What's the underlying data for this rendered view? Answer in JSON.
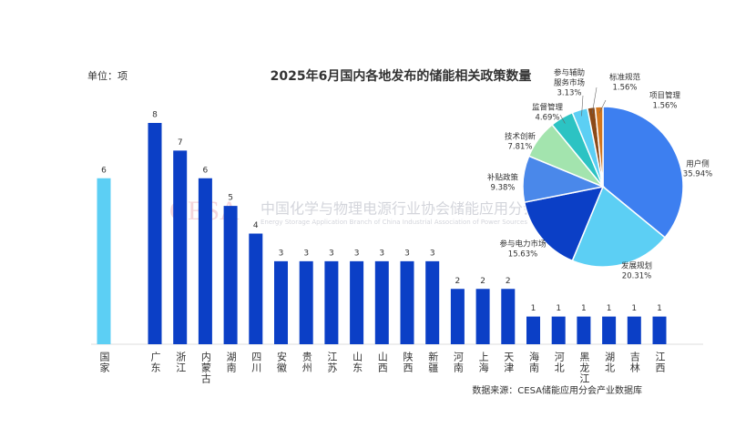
{
  "unit_label": "单位：项",
  "watermark": "中国化学与物理电源行业协会储能应用分会",
  "watermark_logo": "CESA",
  "watermark_en": "Energy Storage Application Branch of China Industrial Association of Power Sources",
  "source": "数据来源：CESA储能应用分会产业数据库",
  "chart_data": [
    {
      "type": "bar",
      "title": "2025年6月国内各地发布的储能相关政策数量",
      "categories": [
        "国家",
        "广东",
        "浙江",
        "内蒙古",
        "湖南",
        "四川",
        "安徽",
        "贵州",
        "江苏",
        "山东",
        "山西",
        "陕西",
        "新疆",
        "河南",
        "上海",
        "天津",
        "海南",
        "河北",
        "黑龙江",
        "湖北",
        "吉林",
        "江西"
      ],
      "values": [
        6,
        8,
        7,
        6,
        5,
        4,
        3,
        3,
        3,
        3,
        3,
        3,
        3,
        2,
        2,
        2,
        1,
        1,
        1,
        1,
        1,
        1
      ],
      "colors": [
        "#5ccff4",
        "#0b3fc6",
        "#0b3fc6",
        "#0b3fc6",
        "#0b3fc6",
        "#0b3fc6",
        "#0b3fc6",
        "#0b3fc6",
        "#0b3fc6",
        "#0b3fc6",
        "#0b3fc6",
        "#0b3fc6",
        "#0b3fc6",
        "#0b3fc6",
        "#0b3fc6",
        "#0b3fc6",
        "#0b3fc6",
        "#0b3fc6",
        "#0b3fc6",
        "#0b3fc6",
        "#0b3fc6",
        "#0b3fc6"
      ],
      "ylim": [
        0,
        8
      ]
    },
    {
      "type": "pie",
      "labels": [
        [
          "用户侧"
        ],
        [
          "发展规划"
        ],
        [
          "参与电力市场"
        ],
        [
          "补贴政策"
        ],
        [
          "技术创新"
        ],
        [
          "监督管理"
        ],
        [
          "参与辅助",
          "服务市场"
        ],
        [
          "标准规范"
        ],
        [
          "项目管理"
        ]
      ],
      "values": [
        35.94,
        20.31,
        15.63,
        9.38,
        7.81,
        4.69,
        3.13,
        1.56,
        1.56
      ],
      "value_labels": [
        "35.94%",
        "20.31%",
        "15.63%",
        "9.38%",
        "7.81%",
        "4.69%",
        "3.13%",
        "1.56%",
        "1.56%"
      ],
      "colors": [
        "#3d7ff0",
        "#5ccff4",
        "#0b3fc6",
        "#4a88ea",
        "#a3e4ae",
        "#2cc3c3",
        "#5ccff4",
        "#8b4a18",
        "#d2761e"
      ]
    }
  ]
}
